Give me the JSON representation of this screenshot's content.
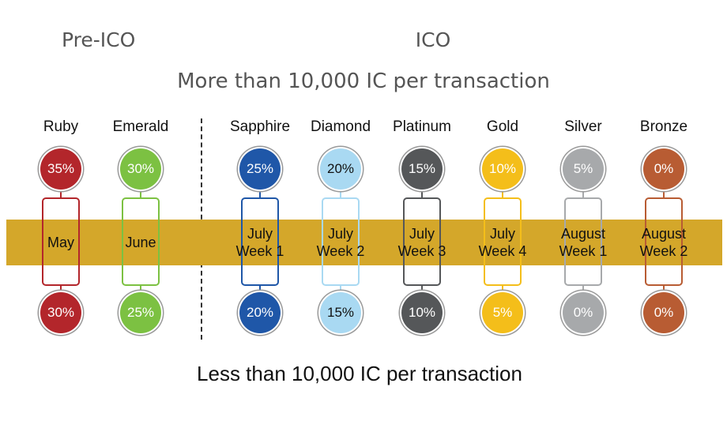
{
  "headings": {
    "pre_ico": "Pre-ICO",
    "ico": "ICO",
    "top_caption": "More than 10,000 IC per transaction",
    "bottom_caption": "Less than 10,000 IC per transaction"
  },
  "band_color": "#d4a72a",
  "tiers": [
    {
      "name": "Ruby",
      "color": "#b3262b",
      "text_color": "#ffffff",
      "top_rate": "35%",
      "bottom_rate": "30%",
      "period_line1": "May",
      "period_line2": ""
    },
    {
      "name": "Emerald",
      "color": "#7cc142",
      "text_color": "#ffffff",
      "top_rate": "30%",
      "bottom_rate": "25%",
      "period_line1": "June",
      "period_line2": ""
    },
    {
      "name": "Sapphire",
      "color": "#1f57a8",
      "text_color": "#ffffff",
      "top_rate": "25%",
      "bottom_rate": "20%",
      "period_line1": "July",
      "period_line2": "Week 1"
    },
    {
      "name": "Diamond",
      "color": "#a9d9f2",
      "text_color": "#111111",
      "top_rate": "20%",
      "bottom_rate": "15%",
      "period_line1": "July",
      "period_line2": "Week 2"
    },
    {
      "name": "Platinum",
      "color": "#555759",
      "text_color": "#ffffff",
      "top_rate": "15%",
      "bottom_rate": "10%",
      "period_line1": "July",
      "period_line2": "Week 3"
    },
    {
      "name": "Gold",
      "color": "#f4be1a",
      "text_color": "#ffffff",
      "top_rate": "10%",
      "bottom_rate": "5%",
      "period_line1": "July",
      "period_line2": "Week 4"
    },
    {
      "name": "Silver",
      "color": "#a7a9ab",
      "text_color": "#ffffff",
      "top_rate": "5%",
      "bottom_rate": "0%",
      "period_line1": "August",
      "period_line2": "Week 1"
    },
    {
      "name": "Bronze",
      "color": "#b85c33",
      "text_color": "#ffffff",
      "top_rate": "0%",
      "bottom_rate": "0%",
      "period_line1": "August",
      "period_line2": "Week 2"
    }
  ]
}
